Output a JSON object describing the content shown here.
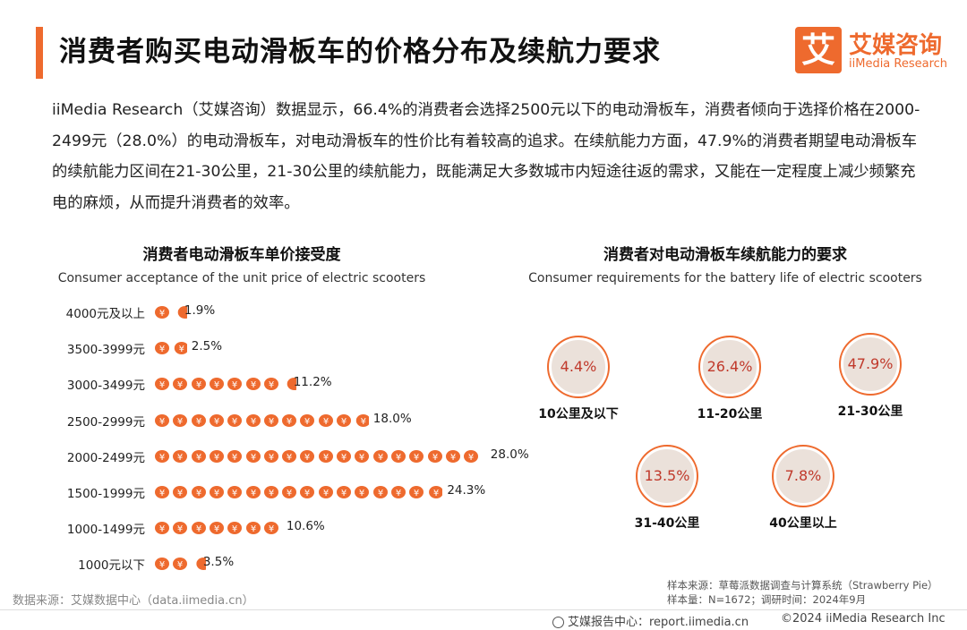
{
  "header": {
    "title": "消费者购买电动滑板车的价格分布及续航力要求",
    "logo_mark": "艾",
    "logo_cn": "艾媒咨询",
    "logo_en": "iiMedia Research"
  },
  "intro": "iiMedia Research（艾媒咨询）数据显示，66.4%的消费者会选择2500元以下的电动滑板车，消费者倾向于选择价格在2000-2499元（28.0%）的电动滑板车，对电动滑板车的性价比有着较高的追求。在续航能力方面，47.9%的消费者期望电动滑板车的续航能力区间在21-30公里，21-30公里的续航能力，既能满足大多数城市内短途往返的需求，又能在一定程度上减少频繁充电的麻烦，从而提升消费者的效率。",
  "chart_data": [
    {
      "type": "bar",
      "orientation": "horizontal",
      "title": "消费者电动滑板车单价接受度",
      "subtitle": "Consumer acceptance of the unit price of electric scooters",
      "unit": "%",
      "categories": [
        "4000元及以上",
        "3500-3999元",
        "3000-3499元",
        "2500-2999元",
        "2000-2499元",
        "1500-1999元",
        "1000-1499元",
        "1000元以下"
      ],
      "values": [
        1.9,
        2.5,
        11.2,
        18.0,
        28.0,
        24.3,
        10.6,
        3.5
      ],
      "value_labels": [
        "1.9%",
        "2.5%",
        "11.2%",
        "18.0%",
        "28.0%",
        "24.3%",
        "10.6%",
        "3.5%"
      ],
      "mark_style": "coin-icon pictogram",
      "color": "#ee6a2e"
    },
    {
      "type": "pie",
      "style": "ring",
      "title": "消费者对电动滑板车续航能力的要求",
      "subtitle": "Consumer requirements for the battery life of electric scooters",
      "unit": "%",
      "categories": [
        "10公里及以下",
        "11-20公里",
        "21-30公里",
        "31-40公里",
        "40公里以上"
      ],
      "values": [
        4.4,
        26.4,
        47.9,
        13.5,
        7.8
      ],
      "value_labels": [
        "4.4%",
        "26.4%",
        "47.9%",
        "13.5%",
        "7.8%"
      ],
      "color": "#ee6a2e",
      "text_color": "#c0392b"
    }
  ],
  "source": {
    "left": "数据来源：艾媒数据中心（data.iimedia.cn）",
    "sample_source": "样本来源：草莓派数据调查与计算系统（Strawberry Pie）",
    "sample_size": "样本量：N=1672；调研时间：2024年9月"
  },
  "footer": {
    "center": "艾媒报告中心：report.iimedia.cn",
    "right": "©2024 iiMedia Research Inc"
  }
}
